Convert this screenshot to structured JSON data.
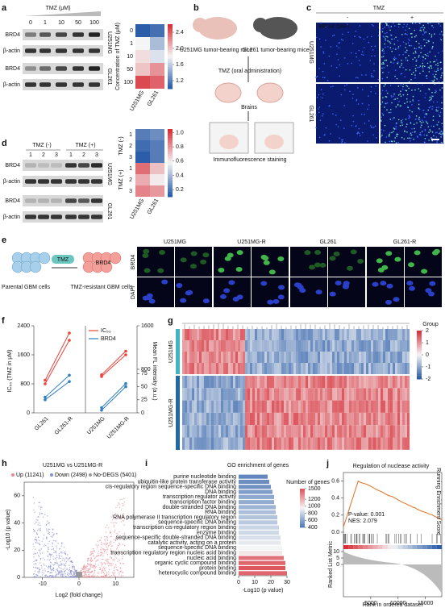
{
  "panels": [
    "a",
    "b",
    "c",
    "d",
    "e",
    "f",
    "g",
    "h",
    "i",
    "j"
  ],
  "a": {
    "header": "TMZ (μM)",
    "doses": [
      "0",
      "1",
      "10",
      "50",
      "100"
    ],
    "blots": [
      "BRD4",
      "β-actin",
      "BRD4",
      "β-actin"
    ],
    "cells": [
      "U251MG",
      "GL261"
    ],
    "heatmap": {
      "ylabel": "Concentration of TMZ (μM)",
      "rows": [
        "0",
        "1",
        "10",
        "50",
        "100"
      ],
      "cols": [
        "U251MG",
        "GL261"
      ],
      "values": [
        [
          1.0,
          1.1
        ],
        [
          1.8,
          1.5
        ],
        [
          1.9,
          1.7
        ],
        [
          2.0,
          2.2
        ],
        [
          2.5,
          2.4
        ]
      ],
      "lim": [
        1.0,
        2.6
      ],
      "ticks": [
        1.2,
        1.6,
        {
          "value": 2,
          "label": "2.0"
        },
        2.4
      ]
    }
  },
  "b": {
    "mice": [
      "U251MG tumor-bearing mice",
      "GL261 tumor-bearing mice"
    ],
    "treatment": "TMZ (oral  administration)",
    "brains": "Brains",
    "staining": "Immunofluorescence staining"
  },
  "c": {
    "header": "TMZ",
    "conditions": [
      "-",
      "+"
    ],
    "legend_brd4": "BRD4",
    "legend_dapi": "/ DAPI",
    "rows": [
      "U251MG",
      "GL261"
    ]
  },
  "d": {
    "groups": [
      "TMZ (-)",
      "TMZ (+)"
    ],
    "lanes": [
      "1",
      "2",
      "3",
      "1",
      "2",
      "3"
    ],
    "blots": [
      "BRD4",
      "β-actin",
      "BRD4",
      "β-actin"
    ],
    "cells": [
      "U251MG",
      "GL261"
    ],
    "heatmap": {
      "rows": [
        "1",
        "2",
        "3",
        "1",
        "2",
        "3"
      ],
      "groups": [
        "TMZ (-)",
        "TMZ (+)"
      ],
      "cols": [
        "U251MG",
        "GL261"
      ],
      "values": [
        [
          0.2,
          0.25
        ],
        [
          0.15,
          0.2
        ],
        [
          0.1,
          0.2
        ],
        [
          0.9,
          0.7
        ],
        [
          0.75,
          0.6
        ],
        [
          0.85,
          0.8
        ]
      ],
      "lim": [
        0.1,
        1.05
      ],
      "ticks": [
        0.2,
        0.4,
        0.6,
        0.8,
        {
          "value": 1,
          "label": "1.0"
        }
      ]
    }
  },
  "e": {
    "drug": "TMZ",
    "marker": "BRD4",
    "parental": "Parental GBM cells",
    "resistant": "TMZ-resistant GBM cells",
    "cols": [
      "U251MG",
      "U251MG-R",
      "GL261",
      "GL261-R"
    ],
    "rows": [
      "BRD4",
      "DAPI"
    ]
  },
  "f": {
    "type": "line",
    "ylabel": "IC₅₀ (TMZ in μM)",
    "y2label": "Mean FL intensity (a.u.)",
    "categories": [
      "GL261",
      "GL261-R",
      "U251MG",
      "U251MG-R"
    ],
    "ylim": [
      0,
      2400
    ],
    "yticks": [
      0,
      800,
      1600,
      2400
    ],
    "y2lim": [
      0,
      75
    ],
    "y2ticks": [
      0,
      25,
      50,
      75
    ],
    "y2ticks_upper": [
      800,
      1600
    ],
    "series": [
      {
        "name": "IC₅₀",
        "color": "#e8453c",
        "values": [
          [
            800,
            2000
          ],
          [
            900,
            2200
          ],
          [
            1000,
            1600
          ],
          [
            1050,
            1700
          ]
        ]
      },
      {
        "name": "BRD4",
        "color": "#2f7fc1",
        "axis": "y2",
        "values": [
          [
            25,
            60
          ],
          [
            30,
            72
          ],
          [
            5,
            50
          ],
          [
            10,
            56
          ]
        ]
      }
    ]
  },
  "g": {
    "legend_title": "Group",
    "ticks": [
      2,
      1,
      0,
      -1,
      -2
    ],
    "rows": [
      "U251MG",
      "U251MG-R"
    ]
  },
  "h": {
    "title": "U251MG vs U251MG-R",
    "legend": [
      "Up (11241)",
      "Down (2498)",
      "No-DEGS (5401)"
    ],
    "ylabel": "-Log10 (p value)",
    "xlabel": "Log2 (fold change)",
    "xticks": [
      -10,
      0,
      10
    ],
    "yticks": [
      0,
      20,
      40,
      60
    ]
  },
  "i": {
    "type": "bar",
    "title": "GO enrichment of genes",
    "xlabel": "-Log10 (p value)",
    "xlim": [
      0,
      30
    ],
    "xticks": [
      0,
      10,
      20,
      30
    ],
    "legend_title": "Number of genes",
    "legend_ticks": [
      400,
      600,
      800,
      1000,
      1200,
      1500
    ],
    "categories": [
      "purine nucleotide binding",
      "ubiquitin-like protein transferase activity",
      "cis-regulatory region sequence-specific DNA binding",
      "DNA binding",
      "transcription regulator activity",
      "transcription factor binding",
      "double-stranded DNA binding",
      "RNA binding",
      "RNA polymerase II transcription regulatory region",
      "sequence-specific DNA binding",
      "transcription cis-regulatory region binding",
      "enzyme binding",
      "sequence-specific double-stranded DNA binding",
      "catalytic activity, acting on a protein",
      "sequence-specific DNA binding",
      "transcription regulatory region nucleic acid binding",
      "nucleic acid binding",
      "organic cyclic compound binding",
      "protein binding",
      "heterocyclic compound binding"
    ],
    "values": [
      18,
      19,
      20,
      21,
      22,
      22,
      23,
      23,
      24,
      24,
      25,
      25,
      26,
      26,
      27,
      27,
      28,
      29,
      29,
      30
    ],
    "genes": [
      450,
      480,
      500,
      550,
      600,
      620,
      650,
      700,
      720,
      750,
      800,
      820,
      850,
      900,
      950,
      1000,
      1400,
      1450,
      1500,
      1450
    ],
    "highlight": [
      2,
      6,
      12,
      16
    ]
  },
  "j": {
    "title": "Regulation of nuclease activity",
    "pvalue": "P-value: 0.001",
    "nes": "NES: 2.079",
    "ylabel": "Running Enrichment Score",
    "ylabel2": "Ranked List Metric",
    "xlabel": "Rank in ordered dataset",
    "xticks": [
      5000,
      10000,
      15000
    ],
    "yticks": [
      {
        "value": 0,
        "label": "0.0"
      },
      0.2,
      0.4,
      0.6
    ],
    "y2ticks": [
      0,
      5,
      10
    ]
  }
}
